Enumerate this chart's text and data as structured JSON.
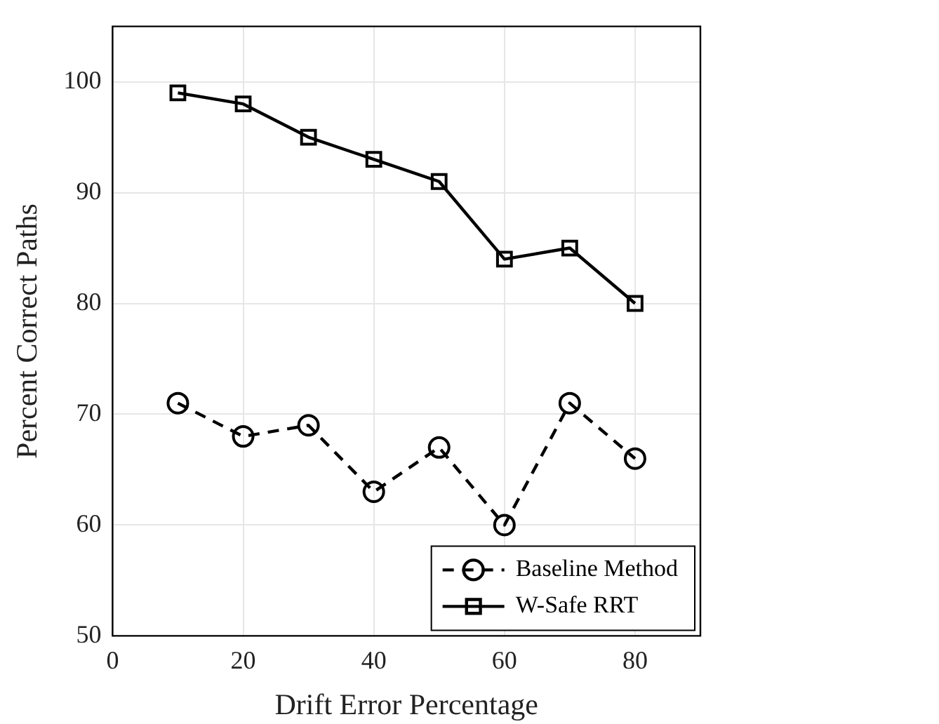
{
  "chart_data": {
    "type": "line",
    "xlabel": "Drift Error Percentage",
    "ylabel": "Percent Correct Paths",
    "x": [
      10,
      20,
      30,
      40,
      50,
      60,
      70,
      80
    ],
    "series": [
      {
        "name": "Baseline Method",
        "color": "#000000",
        "marker": "circle",
        "line_style": "dashed",
        "values": [
          71,
          68,
          69,
          63,
          67,
          60,
          71,
          66
        ]
      },
      {
        "name": "W-Safe RRT",
        "color": "#000000",
        "marker": "square",
        "line_style": "solid",
        "values": [
          99,
          98,
          95,
          93,
          91,
          84,
          85,
          80
        ]
      }
    ],
    "xlim": [
      0,
      90
    ],
    "xticks": [
      0,
      20,
      40,
      60,
      80
    ],
    "ylim": [
      50,
      105
    ],
    "yticks": [
      50,
      60,
      70,
      80,
      90,
      100
    ],
    "grid": true,
    "legend": "bottom right"
  }
}
